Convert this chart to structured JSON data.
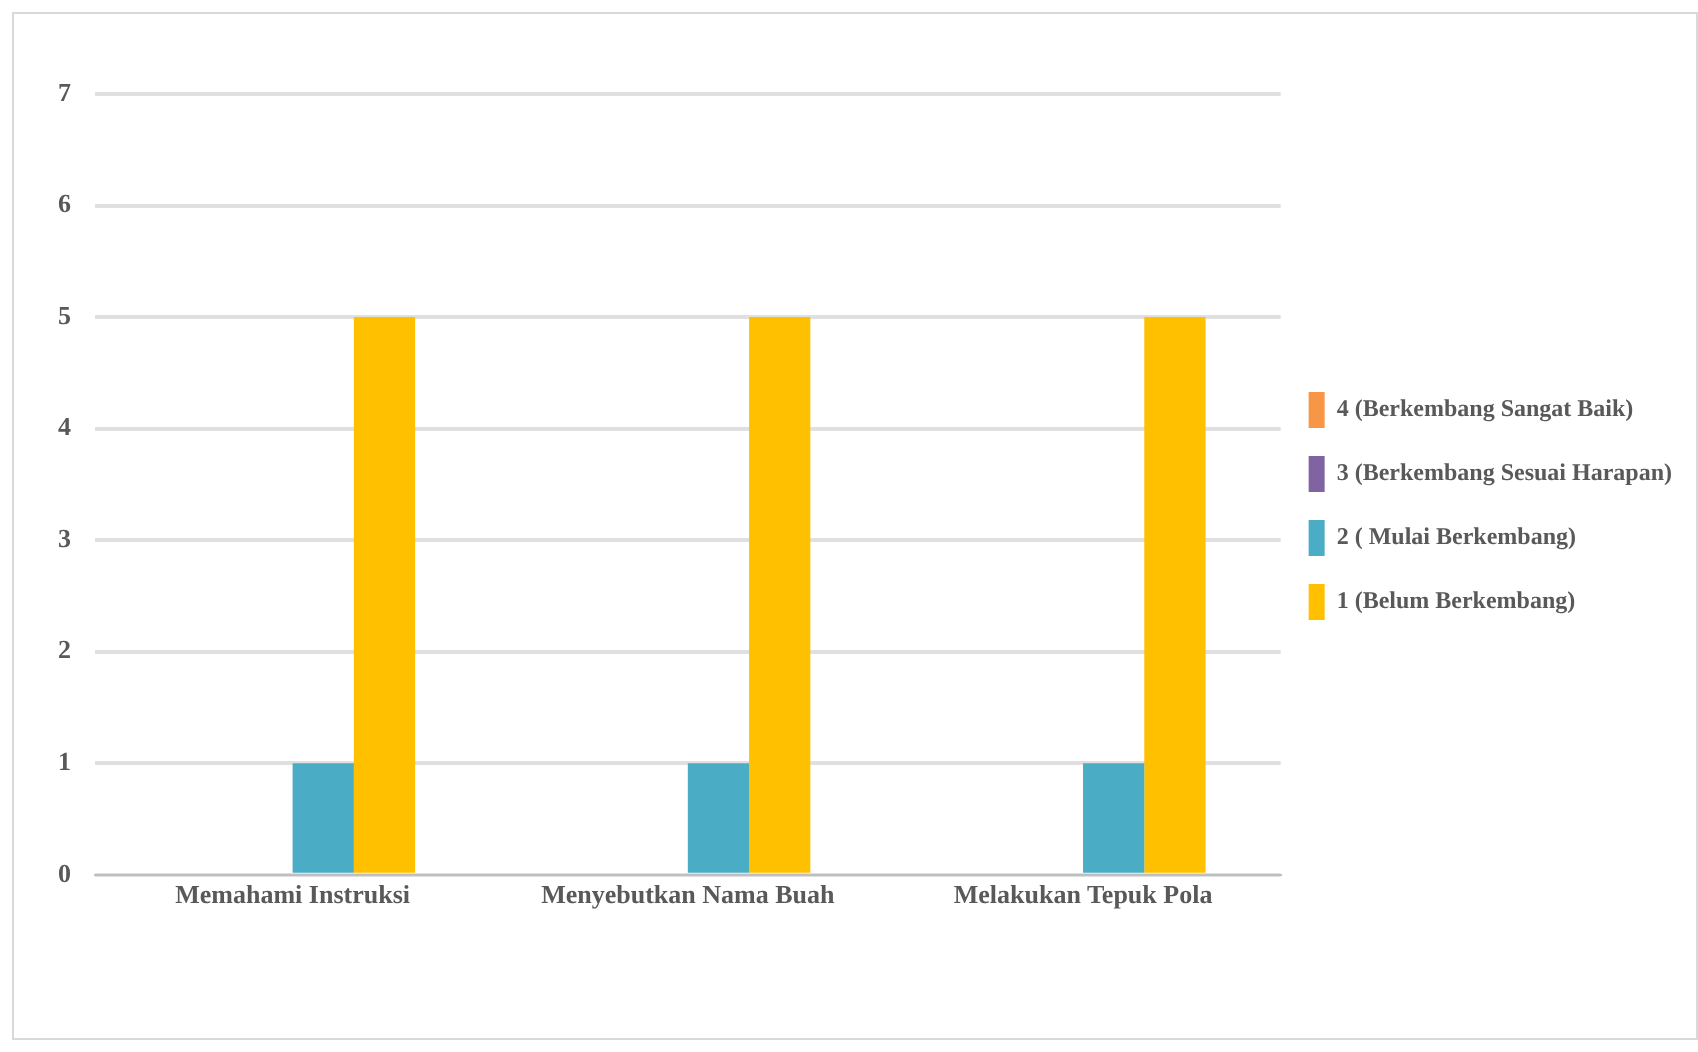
{
  "chart_data": {
    "type": "bar",
    "categories": [
      "Memahami Instruksi",
      "Menyebutkan Nama Buah",
      "Melakukan Tepuk Pola"
    ],
    "series": [
      {
        "name": "4 (Berkembang Sangat Baik)",
        "color": "#f79646",
        "values": [
          null,
          null,
          null
        ]
      },
      {
        "name": "3 (Berkembang Sesuai Harapan)",
        "color": "#8064a2",
        "values": [
          null,
          null,
          null
        ]
      },
      {
        "name": "2 ( Mulai Berkembang)",
        "color": "#4bacc6",
        "values": [
          1,
          1,
          1
        ]
      },
      {
        "name": "1 (Belum Berkembang)",
        "color": "#ffc000",
        "values": [
          5,
          5,
          5
        ]
      }
    ],
    "ylim": [
      0,
      7
    ],
    "yticks": [
      0,
      1,
      2,
      3,
      4,
      5,
      6,
      7
    ],
    "grid": "y",
    "legend": "right"
  }
}
